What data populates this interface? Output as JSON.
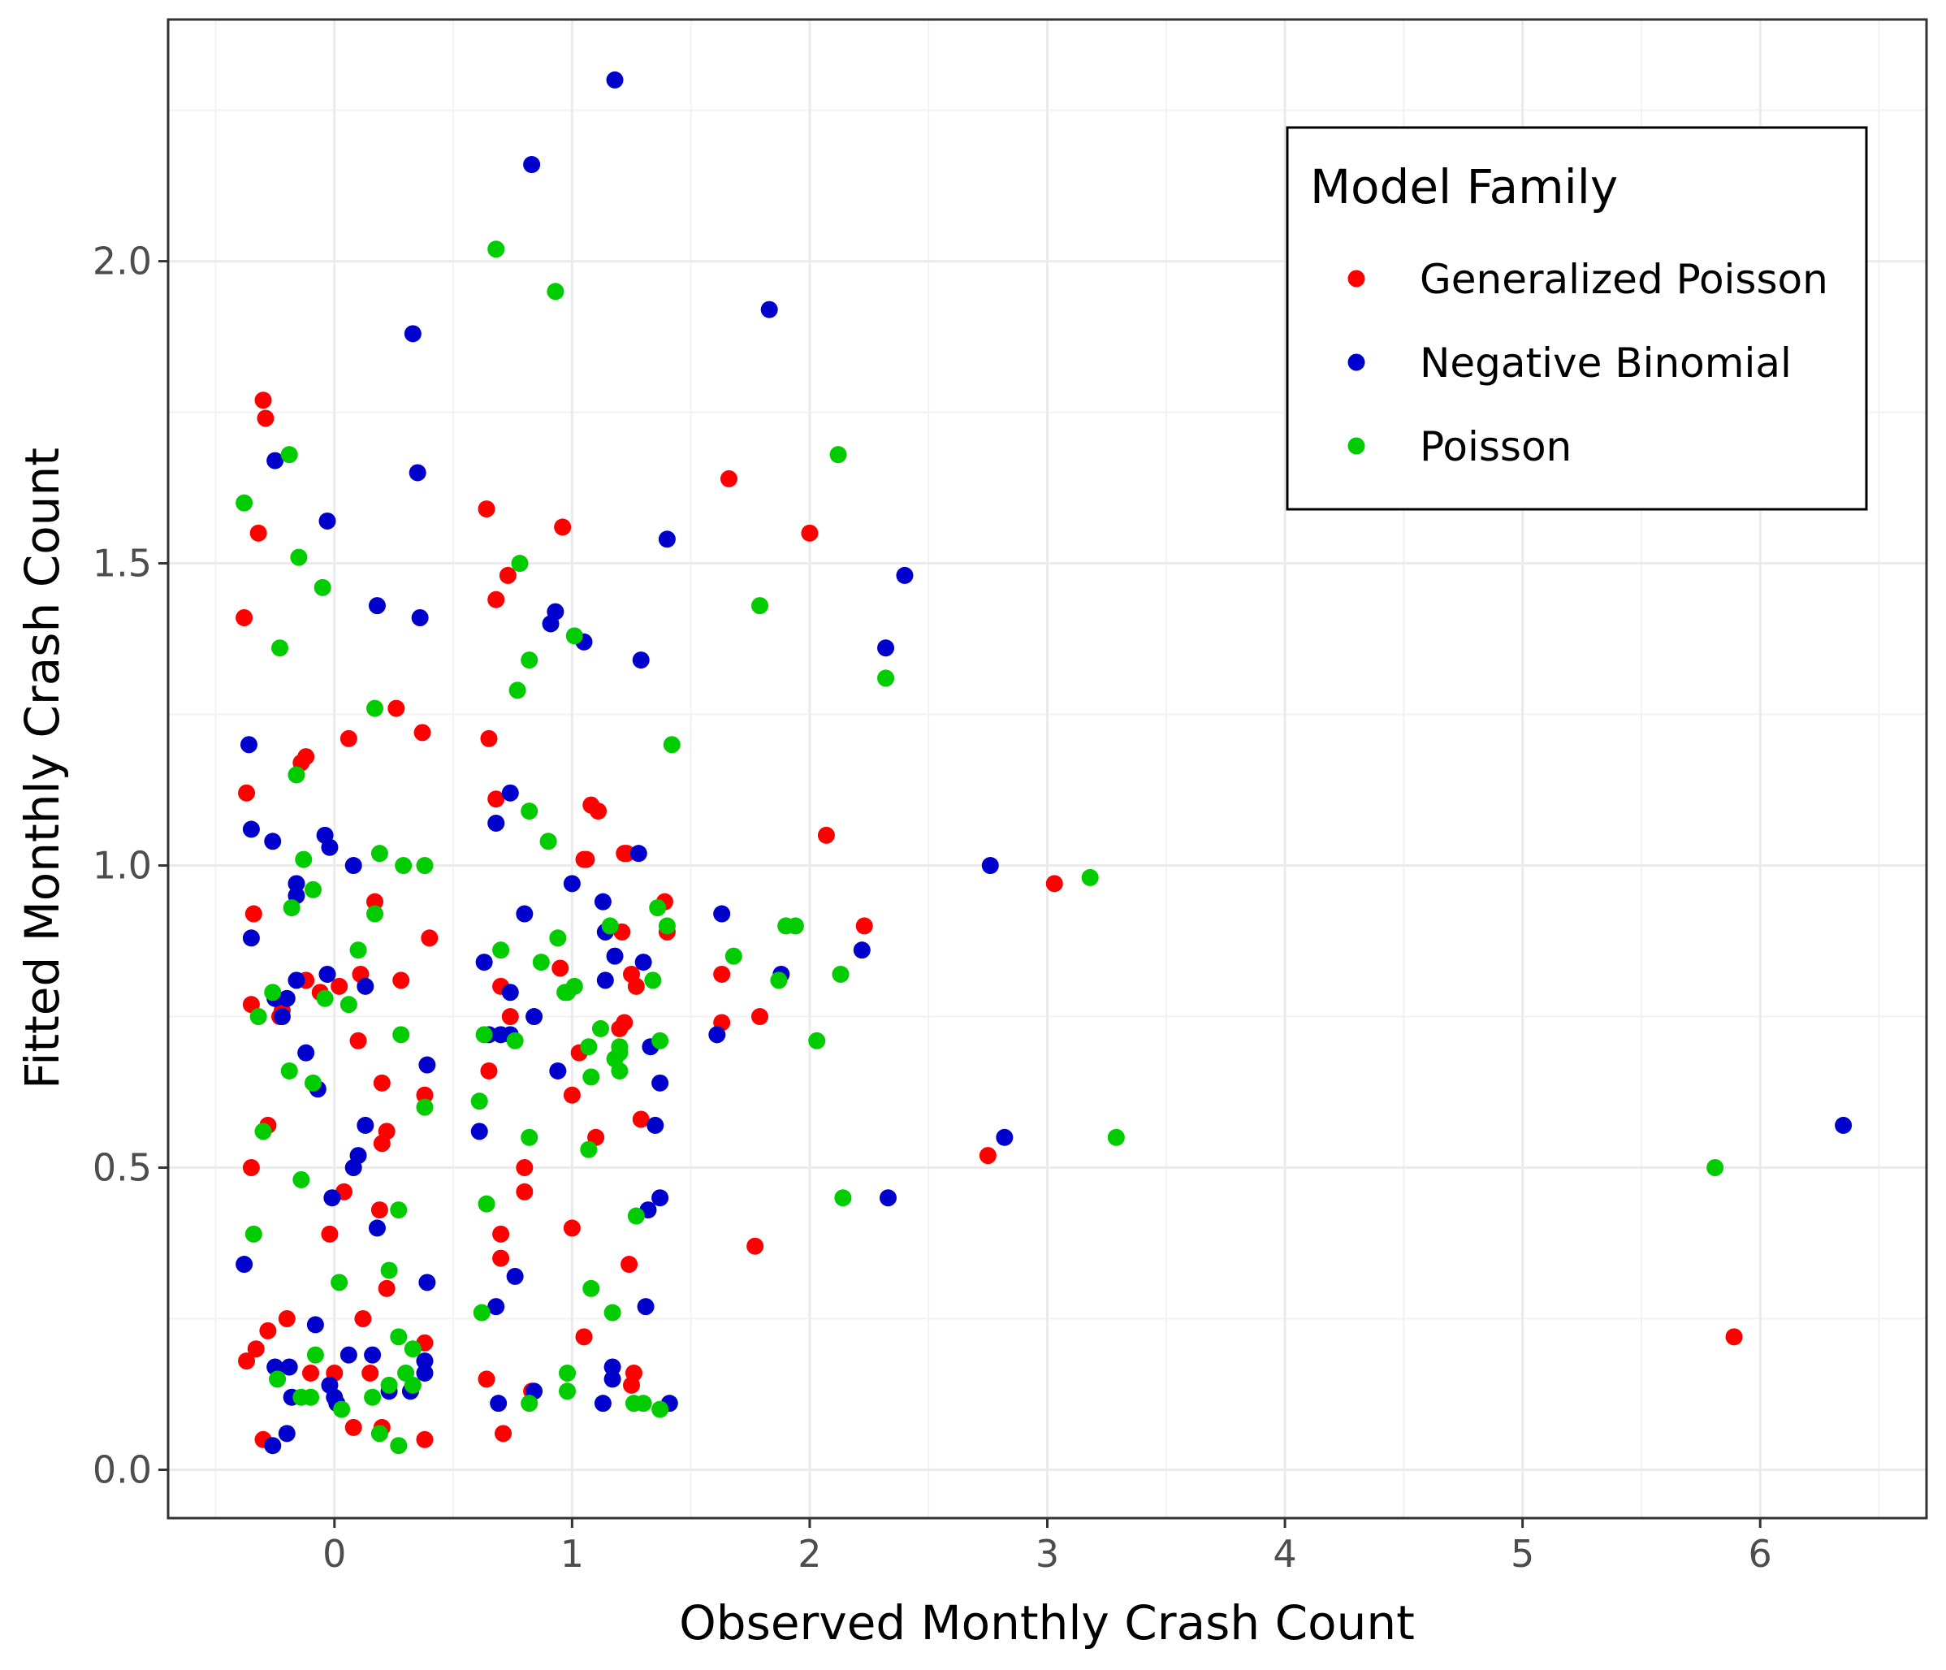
{
  "chart_data": {
    "type": "scatter",
    "title": "",
    "xlabel": "Observed Monthly Crash Count",
    "ylabel": "Fitted Monthly Crash Count",
    "xlim": [
      -0.7,
      6.7
    ],
    "ylim": [
      -0.08,
      2.4
    ],
    "x_ticks": [
      0,
      1,
      2,
      3,
      4,
      5,
      6
    ],
    "y_ticks": [
      0.0,
      0.5,
      1.0,
      1.5,
      2.0
    ],
    "x_tick_labels": [
      "0",
      "1",
      "2",
      "3",
      "4",
      "5",
      "6"
    ],
    "y_tick_labels": [
      "0.0",
      "0.5",
      "1.0",
      "1.5",
      "2.0"
    ],
    "grid": true,
    "legend": {
      "title": "Model Family",
      "placement": "top-right"
    },
    "series": [
      {
        "name": "Generalized Poisson",
        "color": "#ff0000",
        "points": [
          [
            -0.3,
            1.77
          ],
          [
            -0.29,
            1.74
          ],
          [
            -0.32,
            1.55
          ],
          [
            -0.38,
            1.41
          ],
          [
            -0.37,
            1.12
          ],
          [
            -0.34,
            0.92
          ],
          [
            -0.35,
            0.77
          ],
          [
            -0.22,
            0.76
          ],
          [
            -0.23,
            0.75
          ],
          [
            -0.12,
            0.81
          ],
          [
            -0.06,
            0.79
          ],
          [
            0.02,
            0.8
          ],
          [
            0.11,
            0.82
          ],
          [
            0.1,
            0.71
          ],
          [
            0.17,
            0.94
          ],
          [
            0.28,
            0.81
          ],
          [
            0.2,
            0.64
          ],
          [
            0.22,
            0.56
          ],
          [
            0.2,
            0.54
          ],
          [
            0.38,
            0.62
          ],
          [
            0.4,
            0.88
          ],
          [
            0.37,
            1.22
          ],
          [
            0.26,
            1.26
          ],
          [
            0.06,
            1.21
          ],
          [
            -0.12,
            1.18
          ],
          [
            -0.14,
            1.17
          ],
          [
            -0.28,
            0.57
          ],
          [
            -0.35,
            0.5
          ],
          [
            -0.02,
            0.39
          ],
          [
            0.04,
            0.46
          ],
          [
            0.19,
            0.43
          ],
          [
            0.22,
            0.3
          ],
          [
            0.12,
            0.25
          ],
          [
            0.2,
            0.07
          ],
          [
            0.08,
            0.07
          ],
          [
            -0.28,
            0.23
          ],
          [
            -0.2,
            0.25
          ],
          [
            -0.37,
            0.18
          ],
          [
            -0.33,
            0.2
          ],
          [
            -0.1,
            0.16
          ],
          [
            0.0,
            0.16
          ],
          [
            0.15,
            0.16
          ],
          [
            0.38,
            0.21
          ],
          [
            0.38,
            0.05
          ],
          [
            -0.3,
            0.05
          ],
          [
            0.64,
            1.59
          ],
          [
            0.73,
            1.48
          ],
          [
            0.68,
            1.44
          ],
          [
            0.65,
            1.21
          ],
          [
            0.68,
            1.11
          ],
          [
            0.96,
            1.56
          ],
          [
            1.08,
            1.1
          ],
          [
            1.11,
            1.09
          ],
          [
            1.05,
            1.01
          ],
          [
            1.06,
            1.01
          ],
          [
            1.23,
            1.02
          ],
          [
            1.22,
            1.02
          ],
          [
            1.39,
            0.94
          ],
          [
            1.21,
            0.89
          ],
          [
            1.4,
            0.89
          ],
          [
            0.95,
            0.83
          ],
          [
            0.7,
            0.8
          ],
          [
            0.74,
            0.75
          ],
          [
            1.03,
            0.69
          ],
          [
            1.25,
            0.82
          ],
          [
            1.27,
            0.8
          ],
          [
            1.22,
            0.74
          ],
          [
            1.2,
            0.73
          ],
          [
            1.0,
            0.62
          ],
          [
            1.1,
            0.55
          ],
          [
            1.29,
            0.58
          ],
          [
            0.65,
            0.66
          ],
          [
            0.8,
            0.5
          ],
          [
            0.8,
            0.46
          ],
          [
            0.7,
            0.39
          ],
          [
            0.7,
            0.35
          ],
          [
            0.64,
            0.15
          ],
          [
            1.0,
            0.4
          ],
          [
            1.05,
            0.22
          ],
          [
            1.24,
            0.34
          ],
          [
            1.26,
            0.16
          ],
          [
            1.25,
            0.14
          ],
          [
            0.71,
            0.06
          ],
          [
            0.83,
            0.13
          ],
          [
            1.66,
            1.64
          ],
          [
            2.0,
            1.55
          ],
          [
            2.07,
            1.05
          ],
          [
            2.23,
            0.9
          ],
          [
            1.63,
            0.82
          ],
          [
            1.63,
            0.74
          ],
          [
            1.79,
            0.75
          ],
          [
            1.77,
            0.37
          ],
          [
            3.03,
            0.97
          ],
          [
            2.75,
            0.52
          ],
          [
            5.89,
            0.22
          ]
        ]
      },
      {
        "name": "Negative Binomial",
        "color": "#0000cc",
        "points": [
          [
            1.18,
            2.3
          ],
          [
            0.83,
            2.16
          ],
          [
            0.33,
            1.88
          ],
          [
            1.83,
            1.92
          ],
          [
            -0.25,
            1.67
          ],
          [
            0.35,
            1.65
          ],
          [
            -0.03,
            1.57
          ],
          [
            0.18,
            1.43
          ],
          [
            0.36,
            1.41
          ],
          [
            -0.36,
            1.2
          ],
          [
            -0.35,
            1.06
          ],
          [
            -0.26,
            1.04
          ],
          [
            -0.04,
            1.05
          ],
          [
            -0.02,
            1.03
          ],
          [
            0.08,
            1.0
          ],
          [
            -0.16,
            0.97
          ],
          [
            -0.16,
            0.95
          ],
          [
            -0.35,
            0.88
          ],
          [
            -0.03,
            0.82
          ],
          [
            -0.16,
            0.81
          ],
          [
            0.13,
            0.8
          ],
          [
            -0.25,
            0.78
          ],
          [
            -0.2,
            0.78
          ],
          [
            -0.22,
            0.75
          ],
          [
            -0.12,
            0.69
          ],
          [
            -0.07,
            0.63
          ],
          [
            0.13,
            0.57
          ],
          [
            0.1,
            0.52
          ],
          [
            0.08,
            0.5
          ],
          [
            -0.01,
            0.45
          ],
          [
            0.18,
            0.4
          ],
          [
            0.39,
            0.67
          ],
          [
            -0.38,
            0.34
          ],
          [
            0.39,
            0.31
          ],
          [
            -0.08,
            0.24
          ],
          [
            0.06,
            0.19
          ],
          [
            0.16,
            0.19
          ],
          [
            -0.25,
            0.17
          ],
          [
            -0.19,
            0.17
          ],
          [
            -0.02,
            0.14
          ],
          [
            0.32,
            0.13
          ],
          [
            -0.18,
            0.12
          ],
          [
            0.0,
            0.12
          ],
          [
            0.01,
            0.11
          ],
          [
            0.38,
            0.16
          ],
          [
            0.38,
            0.18
          ],
          [
            0.23,
            0.13
          ],
          [
            -0.2,
            0.06
          ],
          [
            -0.26,
            0.04
          ],
          [
            0.91,
            1.4
          ],
          [
            0.93,
            1.42
          ],
          [
            1.05,
            1.37
          ],
          [
            1.29,
            1.34
          ],
          [
            1.4,
            1.54
          ],
          [
            2.32,
            1.36
          ],
          [
            2.4,
            1.48
          ],
          [
            0.68,
            1.07
          ],
          [
            0.74,
            1.12
          ],
          [
            0.8,
            0.92
          ],
          [
            1.0,
            0.97
          ],
          [
            1.13,
            0.94
          ],
          [
            1.28,
            1.02
          ],
          [
            1.14,
            0.89
          ],
          [
            1.18,
            0.85
          ],
          [
            1.3,
            0.84
          ],
          [
            1.14,
            0.81
          ],
          [
            0.63,
            0.84
          ],
          [
            0.65,
            0.72
          ],
          [
            0.7,
            0.72
          ],
          [
            0.74,
            0.72
          ],
          [
            0.74,
            0.79
          ],
          [
            0.84,
            0.75
          ],
          [
            0.94,
            0.66
          ],
          [
            1.33,
            0.7
          ],
          [
            1.37,
            0.64
          ],
          [
            1.35,
            0.57
          ],
          [
            0.61,
            0.56
          ],
          [
            0.76,
            0.32
          ],
          [
            0.68,
            0.27
          ],
          [
            1.32,
            0.43
          ],
          [
            1.37,
            0.45
          ],
          [
            1.31,
            0.27
          ],
          [
            0.69,
            0.11
          ],
          [
            0.84,
            0.13
          ],
          [
            1.13,
            0.11
          ],
          [
            1.17,
            0.15
          ],
          [
            1.17,
            0.17
          ],
          [
            1.41,
            0.11
          ],
          [
            1.63,
            0.92
          ],
          [
            1.61,
            0.72
          ],
          [
            1.88,
            0.82
          ],
          [
            2.22,
            0.86
          ],
          [
            2.33,
            0.45
          ],
          [
            2.76,
            1.0
          ],
          [
            2.82,
            0.55
          ],
          [
            6.35,
            0.57
          ]
        ]
      },
      {
        "name": "Poisson",
        "color": "#00cc00",
        "points": [
          [
            0.68,
            2.02
          ],
          [
            0.93,
            1.95
          ],
          [
            2.12,
            1.68
          ],
          [
            -0.19,
            1.68
          ],
          [
            -0.38,
            1.6
          ],
          [
            -0.15,
            1.51
          ],
          [
            -0.05,
            1.46
          ],
          [
            -0.23,
            1.36
          ],
          [
            0.78,
            1.5
          ],
          [
            1.79,
            1.43
          ],
          [
            0.82,
            1.34
          ],
          [
            1.01,
            1.38
          ],
          [
            0.77,
            1.29
          ],
          [
            2.32,
            1.31
          ],
          [
            0.17,
            1.26
          ],
          [
            -0.16,
            1.15
          ],
          [
            1.42,
            1.2
          ],
          [
            0.82,
            1.09
          ],
          [
            0.9,
            1.04
          ],
          [
            -0.13,
            1.01
          ],
          [
            0.19,
            1.02
          ],
          [
            0.29,
            1.0
          ],
          [
            0.38,
            1.0
          ],
          [
            -0.18,
            0.93
          ],
          [
            -0.09,
            0.96
          ],
          [
            0.17,
            0.92
          ],
          [
            0.1,
            0.86
          ],
          [
            0.7,
            0.86
          ],
          [
            0.94,
            0.88
          ],
          [
            1.16,
            0.9
          ],
          [
            1.4,
            0.9
          ],
          [
            1.36,
            0.93
          ],
          [
            1.9,
            0.9
          ],
          [
            1.94,
            0.9
          ],
          [
            2.13,
            0.82
          ],
          [
            1.34,
            0.81
          ],
          [
            0.87,
            0.84
          ],
          [
            0.98,
            0.79
          ],
          [
            1.01,
            0.8
          ],
          [
            0.97,
            0.79
          ],
          [
            -0.26,
            0.79
          ],
          [
            -0.32,
            0.75
          ],
          [
            -0.04,
            0.78
          ],
          [
            0.06,
            0.77
          ],
          [
            0.28,
            0.72
          ],
          [
            1.12,
            0.73
          ],
          [
            1.07,
            0.7
          ],
          [
            1.2,
            0.7
          ],
          [
            1.2,
            0.69
          ],
          [
            1.37,
            0.71
          ],
          [
            0.63,
            0.72
          ],
          [
            0.76,
            0.71
          ],
          [
            1.18,
            0.68
          ],
          [
            1.2,
            0.66
          ],
          [
            1.08,
            0.65
          ],
          [
            -0.19,
            0.66
          ],
          [
            -0.09,
            0.64
          ],
          [
            -0.3,
            0.56
          ],
          [
            0.38,
            0.6
          ],
          [
            0.61,
            0.61
          ],
          [
            0.82,
            0.55
          ],
          [
            1.07,
            0.53
          ],
          [
            -0.14,
            0.48
          ],
          [
            0.27,
            0.43
          ],
          [
            0.64,
            0.44
          ],
          [
            -0.34,
            0.39
          ],
          [
            0.23,
            0.33
          ],
          [
            0.02,
            0.31
          ],
          [
            1.08,
            0.3
          ],
          [
            1.17,
            0.26
          ],
          [
            0.62,
            0.26
          ],
          [
            1.27,
            0.42
          ],
          [
            0.27,
            0.22
          ],
          [
            0.33,
            0.2
          ],
          [
            -0.08,
            0.19
          ],
          [
            0.3,
            0.16
          ],
          [
            0.33,
            0.14
          ],
          [
            0.23,
            0.14
          ],
          [
            0.16,
            0.12
          ],
          [
            -0.24,
            0.15
          ],
          [
            -0.1,
            0.12
          ],
          [
            -0.14,
            0.12
          ],
          [
            0.03,
            0.1
          ],
          [
            0.19,
            0.06
          ],
          [
            0.27,
            0.04
          ],
          [
            0.82,
            0.11
          ],
          [
            0.98,
            0.16
          ],
          [
            0.98,
            0.13
          ],
          [
            1.26,
            0.11
          ],
          [
            1.3,
            0.11
          ],
          [
            1.37,
            0.1
          ],
          [
            1.68,
            0.85
          ],
          [
            2.03,
            0.71
          ],
          [
            1.87,
            0.81
          ],
          [
            2.14,
            0.45
          ],
          [
            3.18,
            0.98
          ],
          [
            3.29,
            0.55
          ],
          [
            5.81,
            0.5
          ]
        ]
      }
    ]
  }
}
